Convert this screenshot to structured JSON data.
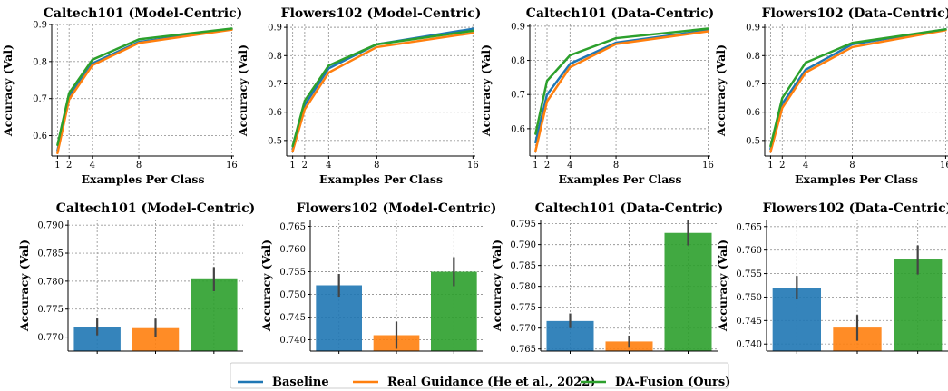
{
  "colors": {
    "baseline": "#1f77b4",
    "real_guidance": "#ff7f0e",
    "da_fusion": "#2ca02c",
    "errbar": "#444444"
  },
  "legend": {
    "position": "bottom-center",
    "entries": [
      "Baseline",
      "Real Guidance (He et al., 2022)",
      "DA-Fusion (Ours)"
    ]
  },
  "chart_data": [
    {
      "type": "line",
      "title": "Caltech101 (Model-Centric)",
      "xlabel": "Examples Per Class",
      "ylabel": "Accuracy (Val)",
      "x": [
        1,
        2,
        4,
        8,
        16
      ],
      "xticks": [
        "1",
        "2",
        "4",
        "8",
        "16"
      ],
      "xlim": [
        0.5,
        16.2
      ],
      "ylim": [
        0.545,
        0.9
      ],
      "yticks": [
        "0.6",
        "0.7",
        "0.8",
        "0.9"
      ],
      "ytick_values": [
        0.6,
        0.7,
        0.8,
        0.9
      ],
      "grid": true,
      "series": [
        {
          "name": "Baseline",
          "values": [
            0.56,
            0.705,
            0.795,
            0.853,
            0.887
          ]
        },
        {
          "name": "Real Guidance (He et al., 2022)",
          "values": [
            0.553,
            0.698,
            0.79,
            0.85,
            0.886
          ]
        },
        {
          "name": "DA-Fusion (Ours)",
          "values": [
            0.575,
            0.715,
            0.805,
            0.86,
            0.889
          ]
        }
      ]
    },
    {
      "type": "line",
      "title": "Flowers102 (Model-Centric)",
      "xlabel": "Examples Per Class",
      "ylabel": "Accuracy (Val)",
      "x": [
        1,
        2,
        4,
        8,
        16
      ],
      "xticks": [
        "1",
        "2",
        "4",
        "8",
        "16"
      ],
      "xlim": [
        0.5,
        16.2
      ],
      "ylim": [
        0.445,
        0.91
      ],
      "yticks": [
        "0.5",
        "0.6",
        "0.7",
        "0.8",
        "0.9"
      ],
      "ytick_values": [
        0.5,
        0.6,
        0.7,
        0.8,
        0.9
      ],
      "grid": true,
      "series": [
        {
          "name": "Baseline",
          "values": [
            0.47,
            0.625,
            0.755,
            0.84,
            0.895
          ]
        },
        {
          "name": "Real Guidance (He et al., 2022)",
          "values": [
            0.462,
            0.61,
            0.74,
            0.83,
            0.88
          ]
        },
        {
          "name": "DA-Fusion (Ours)",
          "values": [
            0.48,
            0.64,
            0.765,
            0.84,
            0.888
          ]
        }
      ]
    },
    {
      "type": "line",
      "title": "Caltech101 (Data-Centric)",
      "xlabel": "Examples Per Class",
      "ylabel": "Accuracy (Val)",
      "x": [
        1,
        2,
        4,
        8,
        16
      ],
      "xticks": [
        "1",
        "2",
        "4",
        "8",
        "16"
      ],
      "xlim": [
        0.5,
        16.2
      ],
      "ylim": [
        0.52,
        0.905
      ],
      "yticks": [
        "0.6",
        "0.7",
        "0.8",
        "0.9"
      ],
      "ytick_values": [
        0.6,
        0.7,
        0.8,
        0.9
      ],
      "grid": true,
      "series": [
        {
          "name": "Baseline",
          "values": [
            0.56,
            0.7,
            0.79,
            0.852,
            0.888
          ]
        },
        {
          "name": "Real Guidance (He et al., 2022)",
          "values": [
            0.535,
            0.68,
            0.78,
            0.848,
            0.885
          ]
        },
        {
          "name": "DA-Fusion (Ours)",
          "values": [
            0.585,
            0.74,
            0.815,
            0.865,
            0.893
          ]
        }
      ]
    },
    {
      "type": "line",
      "title": "Flowers102 (Data-Centric)",
      "xlabel": "Examples Per Class",
      "ylabel": "Accuracy (Val)",
      "x": [
        1,
        2,
        4,
        8,
        16
      ],
      "xticks": [
        "1",
        "2",
        "4",
        "8",
        "16"
      ],
      "xlim": [
        0.5,
        16.2
      ],
      "ylim": [
        0.445,
        0.91
      ],
      "yticks": [
        "0.5",
        "0.6",
        "0.7",
        "0.8",
        "0.9"
      ],
      "ytick_values": [
        0.5,
        0.6,
        0.7,
        0.8,
        0.9
      ],
      "grid": true,
      "series": [
        {
          "name": "Baseline",
          "values": [
            0.47,
            0.63,
            0.75,
            0.84,
            0.893
          ]
        },
        {
          "name": "Real Guidance (He et al., 2022)",
          "values": [
            0.46,
            0.615,
            0.74,
            0.83,
            0.89
          ]
        },
        {
          "name": "DA-Fusion (Ours)",
          "values": [
            0.48,
            0.65,
            0.775,
            0.845,
            0.893
          ]
        }
      ]
    },
    {
      "type": "bar",
      "title": "Caltech101 (Model-Centric)",
      "xlabel": "",
      "ylabel": "Accuracy (Val)",
      "categories": [
        "Baseline",
        "Real Guidance (He et al., 2022)",
        "DA-Fusion (Ours)"
      ],
      "ylim": [
        0.7675,
        0.791
      ],
      "yticks": [
        "0.770",
        "0.775",
        "0.780",
        "0.785",
        "0.790"
      ],
      "ytick_values": [
        0.77,
        0.775,
        0.78,
        0.785,
        0.79
      ],
      "grid": true,
      "values": [
        0.7718,
        0.7716,
        0.7805
      ],
      "errors": [
        [
          0.7703,
          0.7735
        ],
        [
          0.77,
          0.7733
        ],
        [
          0.7782,
          0.7825
        ]
      ]
    },
    {
      "type": "bar",
      "title": "Flowers102 (Model-Centric)",
      "xlabel": "",
      "ylabel": "Accuracy (Val)",
      "categories": [
        "Baseline",
        "Real Guidance (He et al., 2022)",
        "DA-Fusion (Ours)"
      ],
      "ylim": [
        0.7375,
        0.7665
      ],
      "yticks": [
        "0.740",
        "0.745",
        "0.750",
        "0.755",
        "0.760",
        "0.765"
      ],
      "ytick_values": [
        0.74,
        0.745,
        0.75,
        0.755,
        0.76,
        0.765
      ],
      "grid": true,
      "values": [
        0.752,
        0.741,
        0.755
      ],
      "errors": [
        [
          0.7495,
          0.7545
        ],
        [
          0.738,
          0.744
        ],
        [
          0.7518,
          0.7582
        ]
      ]
    },
    {
      "type": "bar",
      "title": "Caltech101 (Data-Centric)",
      "xlabel": "",
      "ylabel": "Accuracy (Val)",
      "categories": [
        "Baseline",
        "Real Guidance (He et al., 2022)",
        "DA-Fusion (Ours)"
      ],
      "ylim": [
        0.7645,
        0.796
      ],
      "yticks": [
        "0.765",
        "0.770",
        "0.775",
        "0.780",
        "0.785",
        "0.790",
        "0.795"
      ],
      "ytick_values": [
        0.765,
        0.77,
        0.775,
        0.78,
        0.785,
        0.79,
        0.795
      ],
      "grid": true,
      "values": [
        0.7717,
        0.7668,
        0.7928
      ],
      "errors": [
        [
          0.77,
          0.7735
        ],
        [
          0.7653,
          0.7682
        ],
        [
          0.7898,
          0.796
        ]
      ]
    },
    {
      "type": "bar",
      "title": "Flowers102 (Data-Centric)",
      "xlabel": "",
      "ylabel": "Accuracy (Val)",
      "categories": [
        "Baseline",
        "Real Guidance (He et al., 2022)",
        "DA-Fusion (Ours)"
      ],
      "ylim": [
        0.7385,
        0.7665
      ],
      "yticks": [
        "0.740",
        "0.745",
        "0.750",
        "0.755",
        "0.760",
        "0.765"
      ],
      "ytick_values": [
        0.74,
        0.745,
        0.75,
        0.755,
        0.76,
        0.765
      ],
      "grid": true,
      "values": [
        0.752,
        0.7435,
        0.758
      ],
      "errors": [
        [
          0.7495,
          0.7545
        ],
        [
          0.7407,
          0.7462
        ],
        [
          0.7548,
          0.761
        ]
      ]
    }
  ]
}
